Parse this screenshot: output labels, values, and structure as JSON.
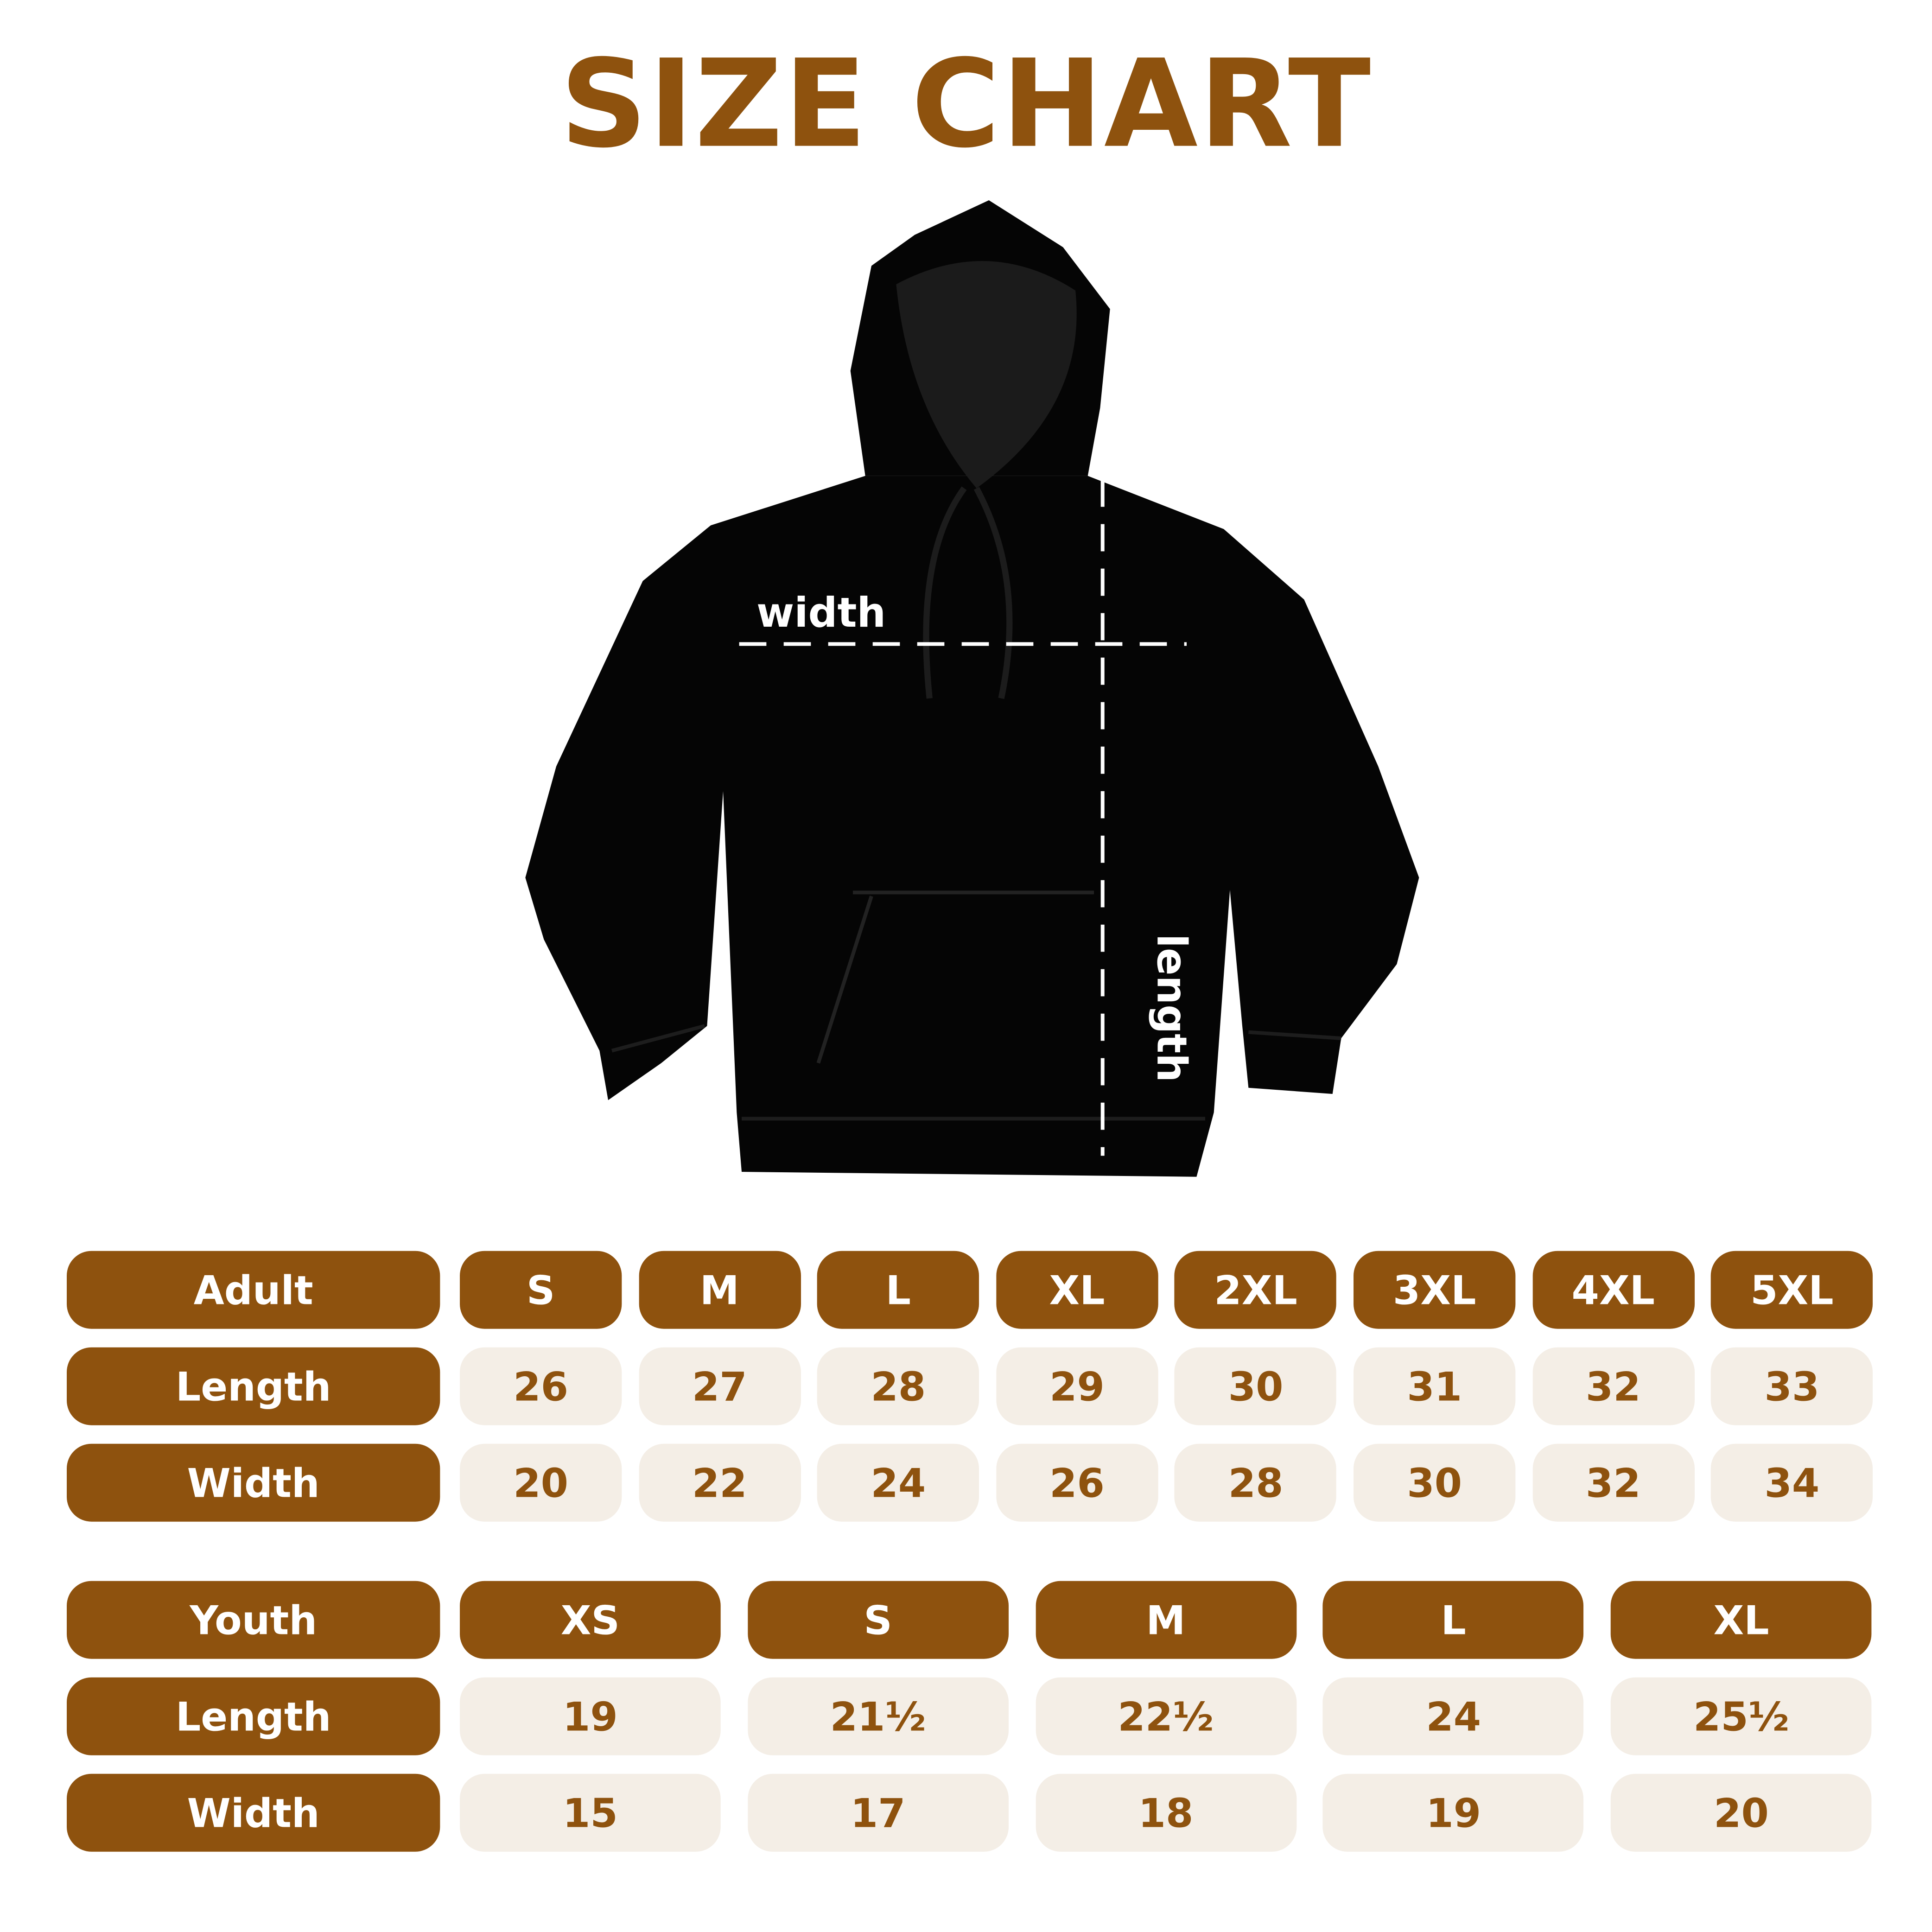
{
  "title": "SIZE CHART",
  "labels": {
    "width": "width",
    "length": "length"
  },
  "colors": {
    "brand": "#8E520E",
    "cell_bg": "#F4EEE6",
    "hoodie": "#000000"
  },
  "adult": {
    "header": "Adult",
    "sizes": [
      "S",
      "M",
      "L",
      "XL",
      "2XL",
      "3XL",
      "4XL",
      "5XL"
    ],
    "rows": [
      {
        "label": "Length",
        "values": [
          "26",
          "27",
          "28",
          "29",
          "30",
          "31",
          "32",
          "33"
        ]
      },
      {
        "label": "Width",
        "values": [
          "20",
          "22",
          "24",
          "26",
          "28",
          "30",
          "32",
          "34"
        ]
      }
    ]
  },
  "youth": {
    "header": "Youth",
    "sizes": [
      "XS",
      "S",
      "M",
      "L",
      "XL"
    ],
    "rows": [
      {
        "label": "Length",
        "values": [
          "19",
          "21½",
          "22½",
          "24",
          "25½"
        ]
      },
      {
        "label": "Width",
        "values": [
          "15",
          "17",
          "18",
          "19",
          "20"
        ]
      }
    ]
  }
}
